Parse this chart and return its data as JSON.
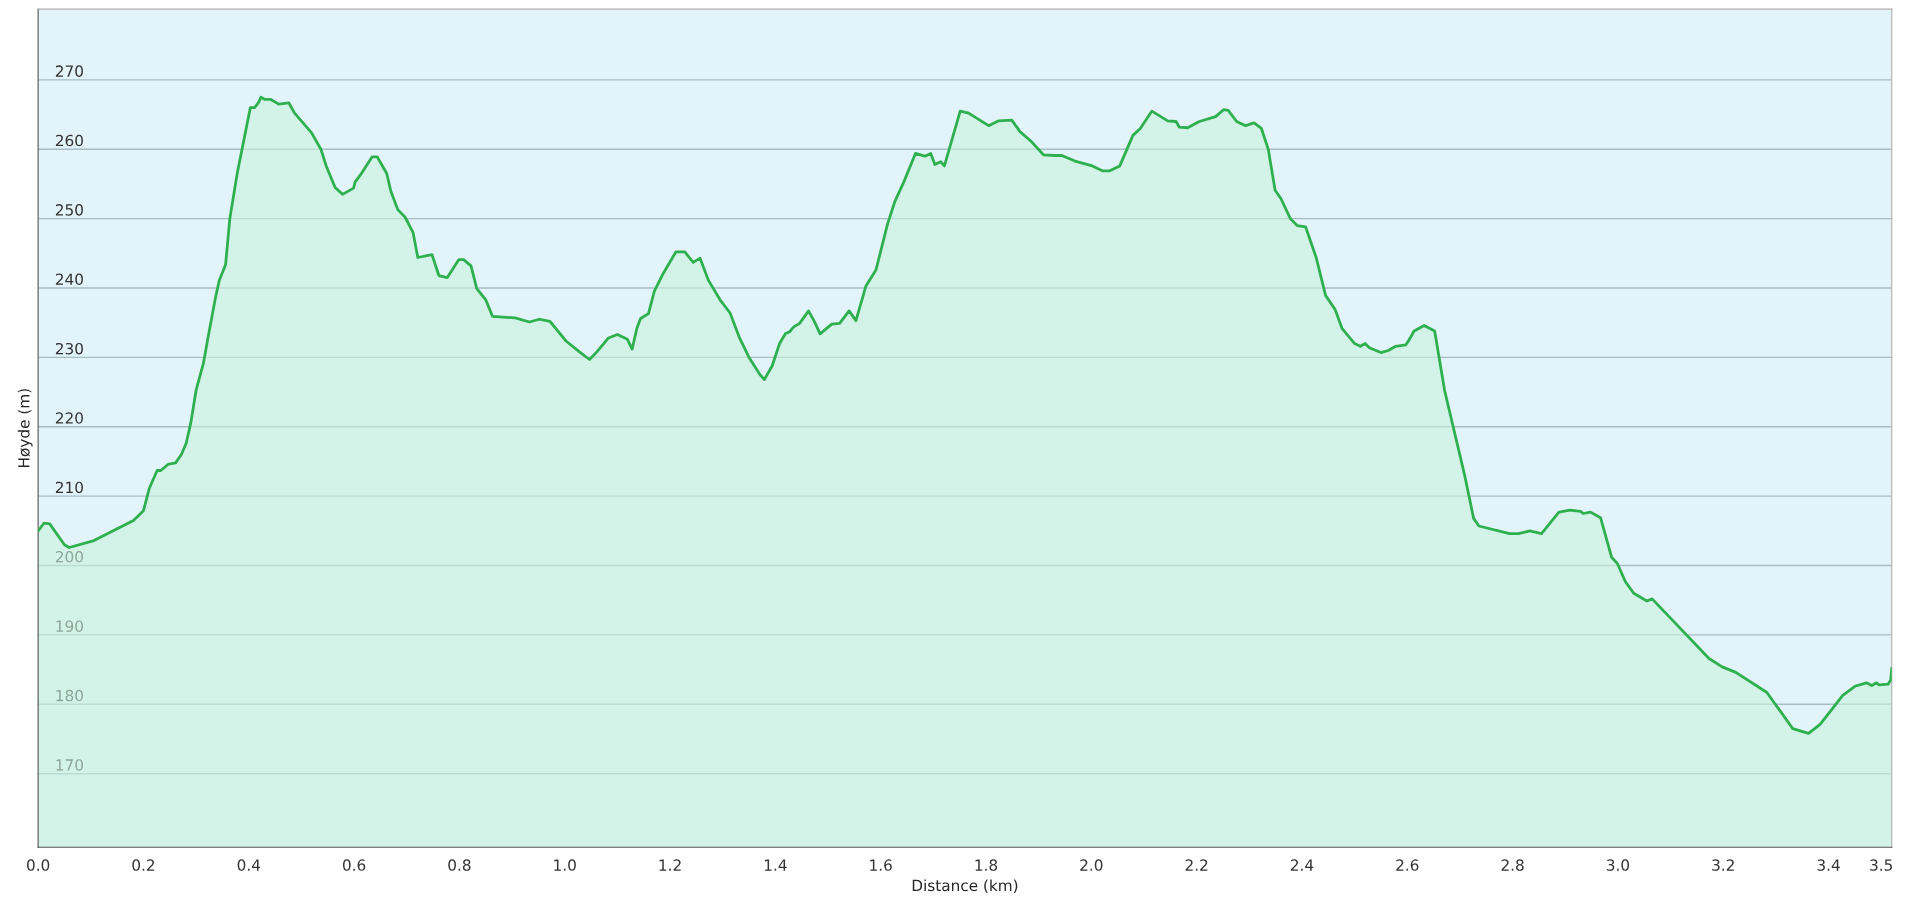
{
  "chart_data": {
    "type": "area",
    "xlabel": "Distance (km)",
    "ylabel": "Høyde (m)",
    "xlim": [
      0,
      3.52
    ],
    "ylim": [
      159.4,
      280.2
    ],
    "xticks": [
      {
        "value": 0,
        "label": "0.0"
      },
      0.2,
      0.4,
      0.6,
      0.8,
      {
        "value": 1,
        "label": "1.0"
      },
      1.2,
      1.4,
      1.6,
      1.8,
      {
        "value": 2,
        "label": "2.0"
      },
      2.2,
      2.4,
      2.6,
      2.8,
      {
        "value": 3,
        "label": "3.0"
      },
      3.2,
      3.4,
      3.5
    ],
    "yticks": [
      170,
      180,
      190,
      200,
      210,
      220,
      230,
      240,
      250,
      260,
      270
    ],
    "grid": "y",
    "series": [
      {
        "color": "#2eb04f",
        "x": [
          0,
          0.011,
          0.022,
          0.05,
          0.059,
          0.106,
          0.181,
          0.2,
          0.211,
          0.226,
          0.233,
          0.247,
          0.261,
          0.272,
          0.281,
          0.29,
          0.3,
          0.314,
          0.322,
          0.337,
          0.344,
          0.356,
          0.364,
          0.378,
          0.403,
          0.411,
          0.419,
          0.423,
          0.43,
          0.441,
          0.457,
          0.476,
          0.487,
          0.519,
          0.537,
          0.547,
          0.564,
          0.578,
          0.599,
          0.602,
          0.612,
          0.634,
          0.644,
          0.662,
          0.67,
          0.683,
          0.697,
          0.712,
          0.721,
          0.748,
          0.761,
          0.777,
          0.799,
          0.808,
          0.822,
          0.833,
          0.85,
          0.863,
          0.906,
          0.933,
          0.952,
          0.972,
          1.002,
          1.028,
          1.047,
          1.061,
          1.083,
          1.1,
          1.119,
          1.128,
          1.137,
          1.144,
          1.159,
          1.17,
          1.187,
          1.211,
          1.228,
          1.244,
          1.257,
          1.273,
          1.295,
          1.314,
          1.332,
          1.35,
          1.37,
          1.379,
          1.394,
          1.408,
          1.419,
          1.427,
          1.435,
          1.446,
          1.463,
          1.474,
          1.485,
          1.507,
          1.522,
          1.54,
          1.553,
          1.572,
          1.591,
          1.613,
          1.627,
          1.644,
          1.666,
          1.684,
          1.695,
          1.703,
          1.714,
          1.721,
          1.751,
          1.767,
          1.805,
          1.824,
          1.849,
          1.865,
          1.885,
          1.909,
          1.931,
          1.944,
          1.969,
          2.002,
          2.021,
          2.035,
          2.054,
          2.079,
          2.093,
          2.115,
          2.145,
          2.161,
          2.167,
          2.183,
          2.205,
          2.236,
          2.251,
          2.26,
          2.276,
          2.293,
          2.309,
          2.323,
          2.336,
          2.349,
          2.36,
          2.378,
          2.391,
          2.407,
          2.427,
          2.445,
          2.463,
          2.476,
          2.5,
          2.511,
          2.52,
          2.528,
          2.55,
          2.564,
          2.578,
          2.597,
          2.604,
          2.613,
          2.632,
          2.652,
          2.671,
          2.709,
          2.726,
          2.736,
          2.794,
          2.811,
          2.833,
          2.855,
          2.871,
          2.888,
          2.909,
          2.929,
          2.934,
          2.948,
          2.967,
          2.988,
          2.999,
          3.014,
          3.03,
          3.055,
          3.065,
          3.173,
          3.198,
          3.224,
          3.283,
          3.332,
          3.362,
          3.384,
          3.427,
          3.45,
          3.472,
          3.482,
          3.491,
          3.496,
          3.513,
          3.518,
          3.52
        ],
        "values": [
          205.0,
          206.1,
          206.0,
          203.0,
          202.6,
          203.6,
          206.5,
          207.9,
          211.1,
          213.7,
          213.7,
          214.6,
          214.8,
          216.0,
          217.6,
          220.6,
          225.3,
          229.2,
          232.6,
          238.7,
          241.1,
          243.4,
          250.0,
          256.5,
          266.0,
          266.0,
          266.8,
          267.5,
          267.2,
          267.2,
          266.5,
          266.7,
          265.2,
          262.4,
          260.0,
          257.6,
          254.5,
          253.5,
          254.4,
          255.3,
          256.3,
          258.9,
          258.9,
          256.5,
          253.9,
          251.3,
          250.2,
          248.0,
          244.4,
          244.8,
          241.8,
          241.5,
          244.1,
          244.1,
          243.2,
          239.9,
          238.3,
          235.9,
          235.7,
          235.1,
          235.5,
          235.2,
          232.4,
          230.8,
          229.7,
          230.8,
          232.8,
          233.3,
          232.6,
          231.2,
          234.2,
          235.6,
          236.3,
          239.5,
          242.1,
          245.2,
          245.2,
          243.7,
          244.3,
          241.1,
          238.3,
          236.4,
          232.8,
          230.0,
          227.6,
          226.8,
          228.8,
          232.0,
          233.4,
          233.7,
          234.4,
          234.9,
          236.7,
          235.2,
          233.4,
          234.8,
          234.9,
          236.7,
          235.3,
          240.3,
          242.6,
          249.2,
          252.5,
          255.3,
          259.4,
          259.0,
          259.4,
          257.8,
          258.2,
          257.6,
          265.5,
          265.2,
          263.4,
          264.1,
          264.2,
          262.5,
          261.2,
          259.2,
          259.1,
          259.1,
          258.3,
          257.6,
          256.9,
          256.9,
          257.6,
          262.0,
          263.0,
          265.5,
          264.1,
          264.0,
          263.2,
          263.1,
          264.0,
          264.7,
          265.7,
          265.6,
          264.0,
          263.4,
          263.8,
          263.0,
          260.0,
          254.1,
          252.9,
          250.0,
          249.0,
          248.8,
          244.4,
          238.9,
          236.9,
          234.2,
          232.0,
          231.6,
          232.0,
          231.4,
          230.7,
          231.0,
          231.6,
          231.8,
          232.6,
          233.8,
          234.6,
          233.8,
          225.2,
          213.0,
          206.8,
          205.7,
          204.6,
          204.6,
          205.0,
          204.6,
          206.1,
          207.7,
          208.0,
          207.8,
          207.5,
          207.7,
          206.9,
          201.2,
          200.3,
          197.7,
          196.0,
          194.9,
          195.2,
          186.6,
          185.4,
          184.6,
          181.7,
          176.5,
          175.8,
          177.1,
          181.3,
          182.6,
          183.1,
          182.7,
          183.1,
          182.8,
          182.9,
          183.5,
          185.2
        ]
      }
    ]
  }
}
